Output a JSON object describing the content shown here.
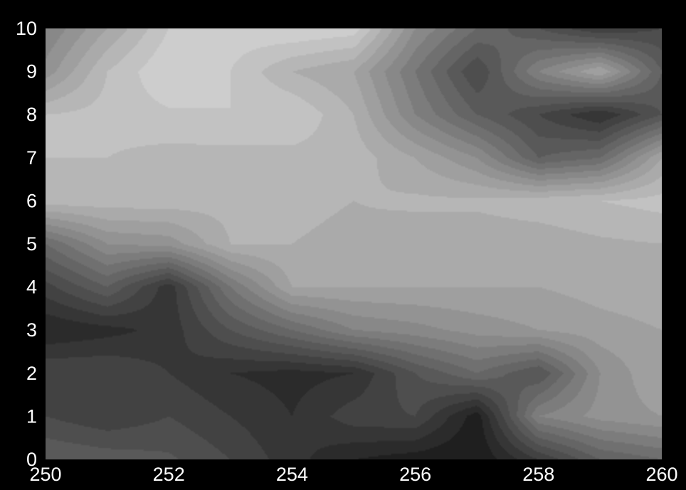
{
  "chart_data": {
    "type": "heatmap",
    "colormap": "grayscale-filled-contour",
    "background": "#000000",
    "tick_color": "#ffffff",
    "xlim": [
      250,
      260
    ],
    "ylim": [
      0,
      10
    ],
    "x_ticks": [
      "250",
      "252",
      "254",
      "256",
      "258",
      "260"
    ],
    "y_ticks": [
      "0",
      "1",
      "2",
      "3",
      "4",
      "5",
      "6",
      "7",
      "8",
      "9",
      "10"
    ],
    "value_range": [
      0,
      1
    ],
    "x": [
      250,
      251,
      252,
      253,
      254,
      255,
      256,
      257,
      258,
      259,
      260
    ],
    "y": [
      0,
      1,
      2,
      3,
      4,
      5,
      6,
      7,
      8,
      9,
      10
    ],
    "z": [
      [
        0.4,
        0.38,
        0.36,
        0.3,
        0.22,
        0.15,
        0.12,
        0.1,
        0.25,
        0.4,
        0.45
      ],
      [
        0.3,
        0.26,
        0.3,
        0.25,
        0.2,
        0.28,
        0.3,
        0.12,
        0.55,
        0.62,
        0.65
      ],
      [
        0.3,
        0.3,
        0.25,
        0.2,
        0.18,
        0.2,
        0.35,
        0.45,
        0.35,
        0.6,
        0.7
      ],
      [
        0.15,
        0.18,
        0.22,
        0.35,
        0.45,
        0.55,
        0.58,
        0.62,
        0.65,
        0.68,
        0.7
      ],
      [
        0.28,
        0.4,
        0.22,
        0.5,
        0.7,
        0.7,
        0.7,
        0.7,
        0.7,
        0.72,
        0.73
      ],
      [
        0.45,
        0.6,
        0.62,
        0.75,
        0.75,
        0.74,
        0.72,
        0.72,
        0.72,
        0.74,
        0.75
      ],
      [
        0.78,
        0.78,
        0.78,
        0.77,
        0.76,
        0.75,
        0.76,
        0.76,
        0.78,
        0.8,
        0.82
      ],
      [
        0.8,
        0.8,
        0.78,
        0.78,
        0.78,
        0.78,
        0.7,
        0.6,
        0.4,
        0.45,
        0.7
      ],
      [
        0.8,
        0.82,
        0.84,
        0.85,
        0.85,
        0.75,
        0.55,
        0.4,
        0.3,
        0.2,
        0.35
      ],
      [
        0.62,
        0.8,
        0.9,
        0.85,
        0.75,
        0.7,
        0.5,
        0.3,
        0.55,
        0.7,
        0.4
      ],
      [
        0.55,
        0.7,
        0.85,
        0.88,
        0.9,
        0.88,
        0.6,
        0.45,
        0.35,
        0.25,
        0.3
      ]
    ]
  }
}
